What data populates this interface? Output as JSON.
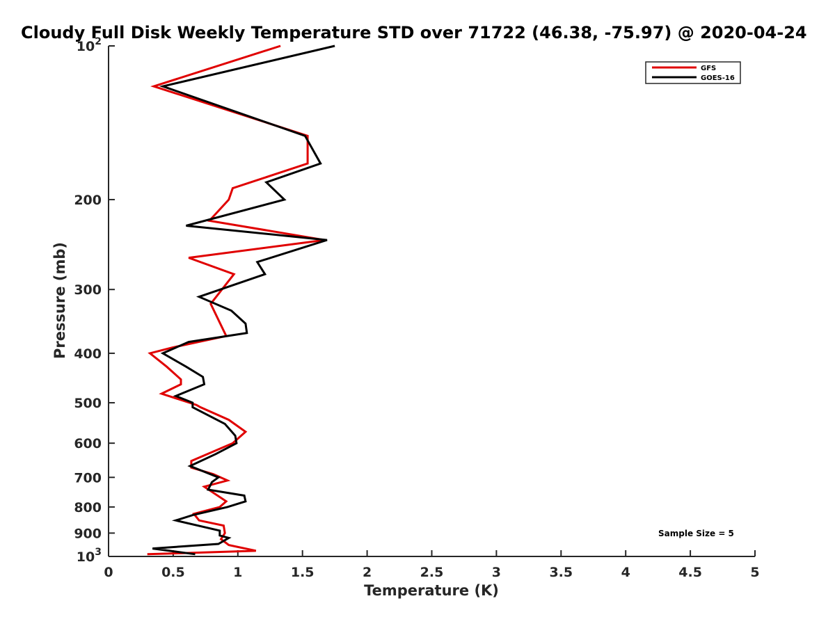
{
  "chart_data": {
    "type": "line",
    "title": "Cloudy Full Disk Weekly Temperature STD over 71722 (46.38, -75.97) @ 2020-04-24",
    "xlabel": "Temperature (K)",
    "ylabel": "Pressure (mb)",
    "xlim": [
      0,
      5
    ],
    "ylim": [
      100,
      1000
    ],
    "yscale": "log",
    "y_reversed": true,
    "grid": false,
    "legend_position": "top-right",
    "x_ticks": [
      {
        "value": 0,
        "label": "0"
      },
      {
        "value": 0.5,
        "label": "0.5"
      },
      {
        "value": 1,
        "label": "1"
      },
      {
        "value": 1.5,
        "label": "1.5"
      },
      {
        "value": 2,
        "label": "2"
      },
      {
        "value": 2.5,
        "label": "2.5"
      },
      {
        "value": 3,
        "label": "3"
      },
      {
        "value": 3.5,
        "label": "3.5"
      },
      {
        "value": 4,
        "label": "4"
      },
      {
        "value": 4.5,
        "label": "4.5"
      },
      {
        "value": 5,
        "label": "5"
      }
    ],
    "y_ticks": [
      {
        "value": 100,
        "label": "10",
        "sup": "2"
      },
      {
        "value": 200,
        "label": "200",
        "sup": ""
      },
      {
        "value": 300,
        "label": "300",
        "sup": ""
      },
      {
        "value": 400,
        "label": "400",
        "sup": ""
      },
      {
        "value": 500,
        "label": "500",
        "sup": ""
      },
      {
        "value": 600,
        "label": "600",
        "sup": ""
      },
      {
        "value": 700,
        "label": "700",
        "sup": ""
      },
      {
        "value": 800,
        "label": "800",
        "sup": ""
      },
      {
        "value": 900,
        "label": "900",
        "sup": ""
      },
      {
        "value": 1000,
        "label": "10",
        "sup": "3"
      }
    ],
    "series": [
      {
        "name": "GFS",
        "color": "#e00000",
        "points": [
          [
            1.33,
            100
          ],
          [
            0.35,
            120
          ],
          [
            1.54,
            150
          ],
          [
            1.54,
            170
          ],
          [
            0.96,
            190
          ],
          [
            0.93,
            200
          ],
          [
            0.78,
            220
          ],
          [
            1.67,
            240
          ],
          [
            0.62,
            260
          ],
          [
            0.97,
            280
          ],
          [
            0.79,
            320
          ],
          [
            0.91,
            370
          ],
          [
            0.49,
            390
          ],
          [
            0.32,
            400
          ],
          [
            0.45,
            425
          ],
          [
            0.56,
            450
          ],
          [
            0.56,
            460
          ],
          [
            0.41,
            480
          ],
          [
            0.68,
            505
          ],
          [
            0.71,
            510
          ],
          [
            0.93,
            540
          ],
          [
            1.06,
            570
          ],
          [
            0.96,
            600
          ],
          [
            0.64,
            650
          ],
          [
            0.64,
            670
          ],
          [
            0.81,
            690
          ],
          [
            0.92,
            710
          ],
          [
            0.74,
            730
          ],
          [
            0.91,
            780
          ],
          [
            0.86,
            800
          ],
          [
            0.66,
            825
          ],
          [
            0.7,
            850
          ],
          [
            0.89,
            870
          ],
          [
            0.9,
            900
          ],
          [
            0.87,
            925
          ],
          [
            0.93,
            950
          ],
          [
            1.14,
            975
          ],
          [
            0.3,
            990
          ]
        ]
      },
      {
        "name": "GOES-16",
        "color": "#000000",
        "points": [
          [
            1.75,
            100
          ],
          [
            0.42,
            120
          ],
          [
            1.52,
            150
          ],
          [
            1.64,
            170
          ],
          [
            1.22,
            185
          ],
          [
            1.36,
            200
          ],
          [
            0.6,
            225
          ],
          [
            1.69,
            240
          ],
          [
            1.15,
            265
          ],
          [
            1.21,
            280
          ],
          [
            0.7,
            310
          ],
          [
            0.95,
            330
          ],
          [
            1.06,
            350
          ],
          [
            1.07,
            365
          ],
          [
            0.62,
            380
          ],
          [
            0.42,
            400
          ],
          [
            0.6,
            425
          ],
          [
            0.73,
            445
          ],
          [
            0.74,
            460
          ],
          [
            0.52,
            485
          ],
          [
            0.65,
            500
          ],
          [
            0.65,
            510
          ],
          [
            0.9,
            550
          ],
          [
            0.98,
            580
          ],
          [
            0.99,
            600
          ],
          [
            0.83,
            630
          ],
          [
            0.63,
            665
          ],
          [
            0.85,
            700
          ],
          [
            0.8,
            715
          ],
          [
            0.77,
            740
          ],
          [
            1.05,
            760
          ],
          [
            1.06,
            780
          ],
          [
            0.92,
            800
          ],
          [
            0.65,
            830
          ],
          [
            0.52,
            850
          ],
          [
            0.86,
            890
          ],
          [
            0.86,
            910
          ],
          [
            0.93,
            920
          ],
          [
            0.85,
            945
          ],
          [
            0.34,
            965
          ],
          [
            0.67,
            990
          ]
        ]
      }
    ],
    "annotation": "Sample Size = 5"
  }
}
